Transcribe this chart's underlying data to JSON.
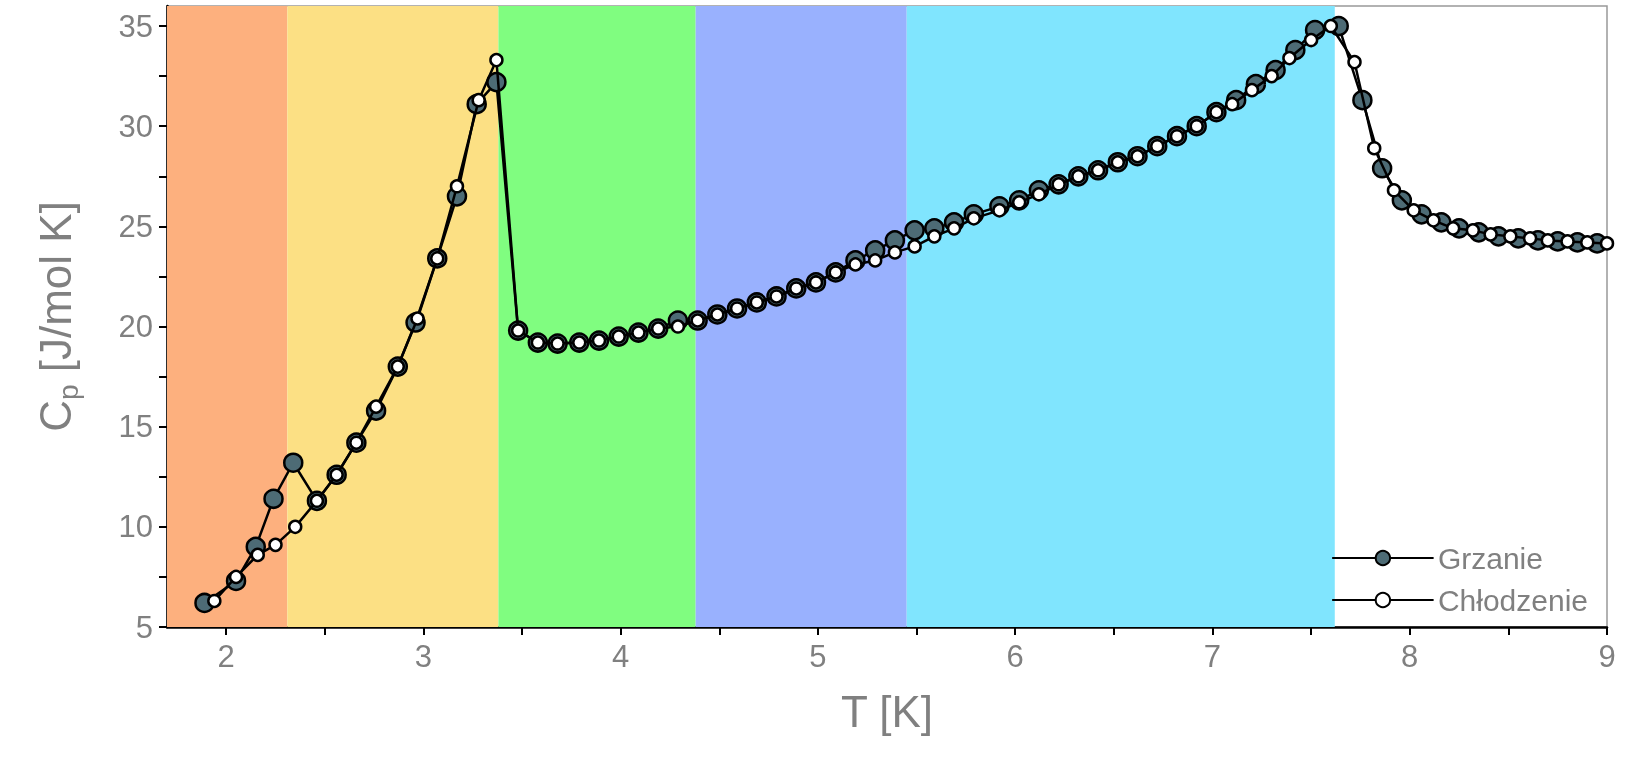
{
  "chart_data": {
    "type": "line",
    "xlabel": "T [K]",
    "ylabel": "C$_{p}$ [J/mol K]",
    "xlim": [
      1.7,
      9
    ],
    "ylim": [
      5,
      36
    ],
    "xticks": [
      2,
      {
        "value": 2.5,
        "label": null
      },
      3,
      {
        "value": 3.5,
        "label": null
      },
      4,
      {
        "value": 4.5,
        "label": null
      },
      5,
      {
        "value": 5.5,
        "label": null
      },
      6,
      {
        "value": 6.5,
        "label": null
      },
      7,
      {
        "value": 7.5,
        "label": null
      },
      8,
      {
        "value": 8.5,
        "label": null
      },
      9
    ],
    "yticks": [
      5,
      {
        "value": 7.5,
        "label": null
      },
      10,
      {
        "value": 12.5,
        "label": null
      },
      15,
      {
        "value": 17.5,
        "label": null
      },
      20,
      {
        "value": 22.5,
        "label": null
      },
      25,
      {
        "value": 27.5,
        "label": null
      },
      30,
      {
        "value": 32.5,
        "label": null
      },
      35
    ],
    "grid": false,
    "legend": "bottom right",
    "marker": "circle",
    "line_style": "solid",
    "bands": [
      {
        "axis": "x",
        "from": 1.7,
        "to": 2.31,
        "color": "#fdb07e"
      },
      {
        "axis": "x",
        "from": 2.31,
        "to": 3.38,
        "color": "#fce084"
      },
      {
        "axis": "x",
        "from": 3.38,
        "to": 4.38,
        "color": "#80fd80"
      },
      {
        "axis": "x",
        "from": 4.38,
        "to": 5.45,
        "color": "#99b1fe"
      },
      {
        "axis": "x",
        "from": 5.45,
        "to": 7.62,
        "color": "#80e5fe"
      }
    ],
    "series": [
      {
        "name": "Grzanie",
        "color": "#4d6b75",
        "x": [
          1.89,
          2.05,
          2.15,
          2.24,
          2.34,
          2.46,
          2.56,
          2.66,
          2.76,
          2.87,
          2.96,
          3.07,
          3.17,
          3.27,
          3.37,
          3.48,
          3.58,
          3.68,
          3.79,
          3.89,
          3.99,
          4.09,
          4.19,
          4.29,
          4.39,
          4.49,
          4.59,
          4.69,
          4.79,
          4.89,
          4.99,
          5.09,
          5.19,
          5.29,
          5.39,
          5.49,
          5.59,
          5.69,
          5.79,
          5.92,
          6.02,
          6.12,
          6.22,
          6.32,
          6.42,
          6.52,
          6.62,
          6.72,
          6.82,
          6.92,
          7.02,
          7.12,
          7.22,
          7.32,
          7.42,
          7.52,
          7.64,
          7.76,
          7.86,
          7.96,
          8.06,
          8.16,
          8.25,
          8.35,
          8.45,
          8.55,
          8.65,
          8.75,
          8.85,
          8.95
        ],
        "values": [
          6.2,
          7.3,
          9.0,
          11.4,
          13.2,
          11.3,
          12.6,
          14.2,
          15.8,
          18.0,
          20.2,
          23.4,
          26.5,
          31.1,
          32.2,
          19.8,
          19.2,
          19.15,
          19.2,
          19.3,
          19.5,
          19.7,
          19.9,
          20.3,
          20.3,
          20.6,
          20.9,
          21.2,
          21.5,
          21.9,
          22.2,
          22.7,
          23.3,
          23.8,
          24.3,
          24.8,
          24.9,
          25.2,
          25.6,
          26.0,
          26.3,
          26.8,
          27.1,
          27.5,
          27.8,
          28.2,
          28.5,
          29.0,
          29.5,
          30.0,
          30.7,
          31.3,
          32.1,
          32.8,
          33.8,
          34.8,
          35.0,
          31.3,
          27.9,
          26.3,
          25.6,
          25.2,
          24.9,
          24.7,
          24.5,
          24.4,
          24.3,
          24.25,
          24.2,
          24.15
        ]
      },
      {
        "name": "Chłodzenie",
        "color": "#ffffff",
        "x": [
          1.94,
          2.05,
          2.16,
          2.25,
          2.35,
          2.46,
          2.56,
          2.66,
          2.76,
          2.87,
          2.97,
          3.07,
          3.17,
          3.28,
          3.37,
          3.48,
          3.58,
          3.68,
          3.79,
          3.89,
          3.99,
          4.09,
          4.19,
          4.29,
          4.39,
          4.49,
          4.59,
          4.69,
          4.79,
          4.89,
          4.99,
          5.09,
          5.19,
          5.29,
          5.39,
          5.49,
          5.59,
          5.69,
          5.79,
          5.92,
          6.02,
          6.12,
          6.22,
          6.32,
          6.42,
          6.52,
          6.62,
          6.72,
          6.82,
          6.92,
          7.02,
          7.1,
          7.2,
          7.3,
          7.39,
          7.5,
          7.6,
          7.72,
          7.82,
          7.92,
          8.02,
          8.12,
          8.22,
          8.32,
          8.41,
          8.51,
          8.61,
          8.7,
          8.8,
          8.9,
          9.0
        ],
        "values": [
          6.3,
          7.5,
          8.6,
          9.1,
          10.0,
          11.3,
          12.6,
          14.2,
          16.0,
          18.0,
          20.4,
          23.4,
          27.0,
          31.3,
          33.3,
          19.8,
          19.2,
          19.15,
          19.2,
          19.3,
          19.5,
          19.7,
          19.9,
          20.0,
          20.3,
          20.6,
          20.9,
          21.2,
          21.5,
          21.9,
          22.2,
          22.7,
          23.1,
          23.3,
          23.7,
          24.0,
          24.5,
          24.9,
          25.4,
          25.8,
          26.2,
          26.6,
          27.1,
          27.5,
          27.8,
          28.2,
          28.5,
          29.0,
          29.5,
          30.0,
          30.7,
          31.1,
          31.8,
          32.5,
          33.4,
          34.3,
          35.0,
          33.2,
          28.9,
          26.8,
          25.8,
          25.3,
          24.9,
          24.8,
          24.6,
          24.5,
          24.4,
          24.3,
          24.25,
          24.2,
          24.15
        ]
      }
    ]
  }
}
